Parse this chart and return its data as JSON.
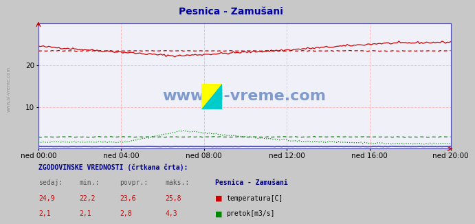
{
  "title": "Pesnica - Zamušani",
  "background_color": "#c8c8c8",
  "plot_background": "#f0f0f8",
  "grid_color_v": "#ffbbbb",
  "grid_color_h": "#ffbbbb",
  "x_ticks_labels": [
    "ned 00:00",
    "ned 04:00",
    "ned 08:00",
    "ned 12:00",
    "ned 16:00",
    "ned 20:00"
  ],
  "x_ticks_pos": [
    0,
    48,
    96,
    144,
    192,
    239
  ],
  "n_points": 240,
  "ylim": [
    0,
    30
  ],
  "y_ticks": [
    10,
    20
  ],
  "temp_color": "#cc0000",
  "flow_color": "#008800",
  "height_color": "#4444cc",
  "title_color": "#0000aa",
  "axis_color": "#4444aa",
  "label_color": "#0000aa",
  "watermark_text": "www.si-vreme.com",
  "watermark_color": "#2255aa",
  "sidebar_text": "www.si-vreme.com",
  "temp_current": 24.9,
  "temp_min": 22.2,
  "temp_avg": 23.6,
  "temp_max": 25.8,
  "flow_current": 2.1,
  "flow_min": 2.1,
  "flow_avg": 2.8,
  "flow_max": 4.3
}
